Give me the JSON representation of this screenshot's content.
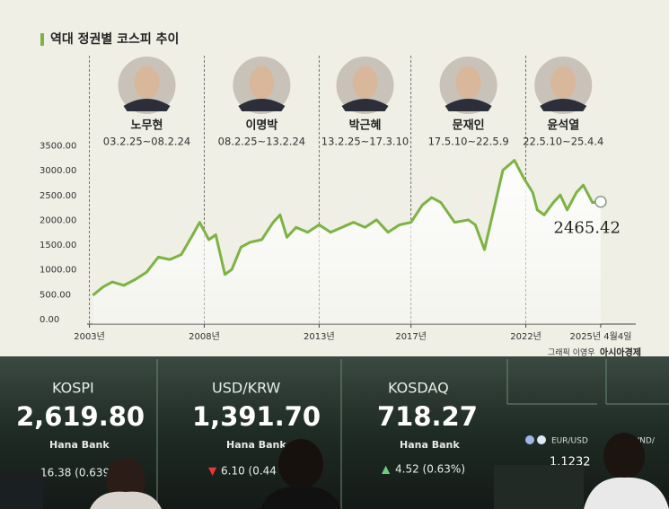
{
  "chart_data": {
    "type": "line",
    "title": "역대 정권별 코스피 추이",
    "x": [
      2003.15,
      2003.6,
      2004.0,
      2004.5,
      2005.0,
      2005.5,
      2006.0,
      2006.5,
      2007.0,
      2007.5,
      2007.8,
      2008.2,
      2008.5,
      2008.9,
      2009.2,
      2009.6,
      2010.0,
      2010.5,
      2011.0,
      2011.3,
      2011.6,
      2012.0,
      2012.5,
      2013.0,
      2013.5,
      2014.0,
      2014.5,
      2015.0,
      2015.5,
      2016.0,
      2016.5,
      2017.0,
      2017.5,
      2017.9,
      2018.3,
      2018.9,
      2019.5,
      2019.8,
      2020.2,
      2020.6,
      2021.0,
      2021.5,
      2021.9,
      2022.3,
      2022.5,
      2022.8,
      2023.2,
      2023.5,
      2023.8,
      2024.2,
      2024.5,
      2024.9,
      2025.26
    ],
    "values": [
      580,
      750,
      850,
      780,
      900,
      1050,
      1350,
      1300,
      1400,
      1800,
      2050,
      1700,
      1800,
      1000,
      1100,
      1550,
      1650,
      1700,
      2050,
      2200,
      1750,
      1950,
      1850,
      2000,
      1850,
      1950,
      2050,
      1950,
      2100,
      1850,
      2000,
      2050,
      2400,
      2550,
      2450,
      2050,
      2100,
      2000,
      1500,
      2300,
      3100,
      3300,
      2950,
      2650,
      2300,
      2200,
      2450,
      2600,
      2300,
      2650,
      2800,
      2450,
      2465.42
    ],
    "value_labels": [
      null,
      null,
      null,
      null,
      null,
      null,
      null,
      null,
      null,
      null,
      null,
      null,
      null,
      null,
      null,
      null,
      null,
      null,
      null,
      null,
      null,
      null,
      null,
      null,
      null,
      null,
      null,
      null,
      null,
      null,
      null,
      null,
      null,
      null,
      null,
      null,
      null,
      null,
      null,
      null,
      null,
      null,
      null,
      null,
      null,
      null,
      null,
      null,
      null,
      null,
      null,
      null,
      "2465.42"
    ],
    "color": "#7cb342",
    "xlim": [
      2002.9,
      2026.2
    ],
    "xticks": [
      {
        "value": 2003,
        "label": "2003년"
      },
      {
        "value": 2008,
        "label": "2008년"
      },
      {
        "value": 2013,
        "label": "2013년"
      },
      {
        "value": 2017,
        "label": "2017년"
      },
      {
        "value": 2022,
        "label": "2022년"
      },
      {
        "value": 2025.26,
        "label": "2025년 4월4일"
      }
    ],
    "ylim": [
      0,
      3600
    ],
    "yticks": [
      {
        "value": 0,
        "label": "0.00"
      },
      {
        "value": 500,
        "label": "500.00"
      },
      {
        "value": 1000,
        "label": "1000.00"
      },
      {
        "value": 1500,
        "label": "1500.00"
      },
      {
        "value": 2000,
        "label": "2000.00"
      },
      {
        "value": 2500,
        "label": "2500.00"
      },
      {
        "value": 3000,
        "label": "3000.00"
      },
      {
        "value": 3500,
        "label": "3500.00"
      }
    ],
    "presidents": [
      {
        "name": "노무현",
        "term": "03.2.25~08.2.24"
      },
      {
        "name": "이명박",
        "term": "08.2.25~13.2.24"
      },
      {
        "name": "박근혜",
        "term": "13.2.25~17.3.10"
      },
      {
        "name": "문재인",
        "term": "17.5.10~22.5.9"
      },
      {
        "name": "윤석열",
        "term": "22.5.10~25.4.4"
      }
    ],
    "credit": "그래픽 이영우",
    "source": "아시아경제"
  },
  "board": {
    "panels": [
      {
        "name": "KOSPI",
        "value": "2,619.80",
        "bank": "Hana Bank",
        "arrow": "",
        "change": "16.38 (0.639"
      },
      {
        "name": "USD/KRW",
        "value": "1,391.70",
        "bank": "Hana Bank",
        "arrow": "▼",
        "change": "6.10 (0.44"
      },
      {
        "name": "KOSDAQ",
        "value": "718.27",
        "bank": "Hana Bank",
        "arrow": "▲",
        "change": "4.52 (0.63%)"
      }
    ],
    "side": [
      {
        "name": "EUR/USD",
        "value": "1.1232"
      },
      {
        "name": "VND/"
      }
    ]
  }
}
